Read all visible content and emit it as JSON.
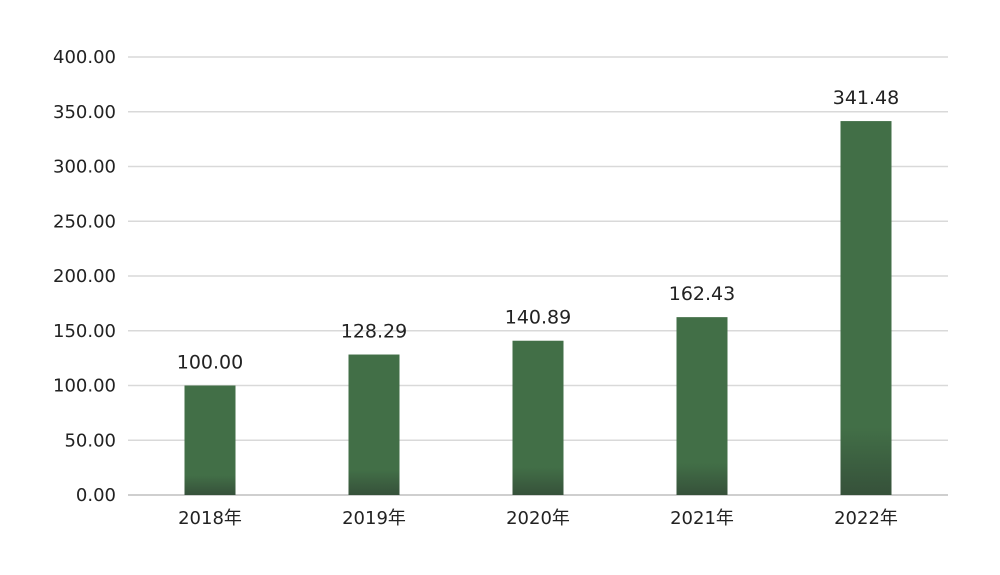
{
  "chart_data": {
    "type": "bar",
    "categories": [
      "2018年",
      "2019年",
      "2020年",
      "2021年",
      "2022年"
    ],
    "values": [
      100.0,
      128.29,
      140.89,
      162.43,
      341.48
    ],
    "data_labels": [
      "100.00",
      "128.29",
      "140.89",
      "162.43",
      "341.48"
    ],
    "y_ticks": [
      "0.00",
      "50.00",
      "100.00",
      "150.00",
      "200.00",
      "250.00",
      "300.00",
      "350.00",
      "400.00"
    ],
    "ylim": [
      0,
      400
    ],
    "grid": true,
    "legend": "none",
    "colors": {
      "bar": "#426f47",
      "bar_bottom": "#36513a"
    }
  }
}
